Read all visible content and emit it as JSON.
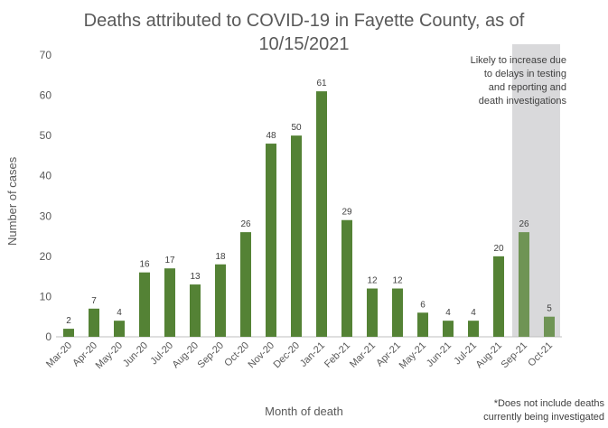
{
  "chart_data": {
    "type": "bar",
    "title": "Deaths attributed to COVID-19 in Fayette County, as of",
    "title_line2": "10/15/2021",
    "xlabel": "Month of death",
    "ylabel": "Number of cases",
    "ylim": [
      0,
      70
    ],
    "yticks": [
      "0",
      "10",
      "20",
      "30",
      "40",
      "50",
      "60",
      "70"
    ],
    "categories": [
      "Mar-20",
      "Apr-20",
      "May-20",
      "Jun-20",
      "Jul-20",
      "Aug-20",
      "Sep-20",
      "Oct-20",
      "Nov-20",
      "Dec-20",
      "Jan-21",
      "Feb-21",
      "Mar-21",
      "Apr-21",
      "May-21",
      "Jun-21",
      "Jul-21",
      "Aug-21",
      "Sep-21",
      "Oct-21"
    ],
    "values": [
      2,
      7,
      4,
      16,
      17,
      13,
      18,
      26,
      48,
      50,
      61,
      29,
      12,
      12,
      6,
      4,
      4,
      20,
      26,
      5
    ],
    "data_labels": [
      "2",
      "7",
      "4",
      "16",
      "17",
      "13",
      "18",
      "26",
      "48",
      "50",
      "61",
      "29",
      "12",
      "12",
      "6",
      "4",
      "4",
      "20",
      "26",
      "5"
    ],
    "grid": false,
    "shaded_region": {
      "categories": [
        "Sep-21",
        "Oct-21"
      ],
      "annotation": [
        "Likely to increase due",
        "to delays in testing",
        "and reporting and",
        "death investigations"
      ]
    },
    "footnote": [
      "*Does not include deaths",
      "currently being investigated"
    ],
    "colors": {
      "bar": "#548235",
      "bar_shaded": "#6f9455",
      "shade": "#d9d9db",
      "axis": "#bfbfbf",
      "text": "#595959"
    }
  }
}
